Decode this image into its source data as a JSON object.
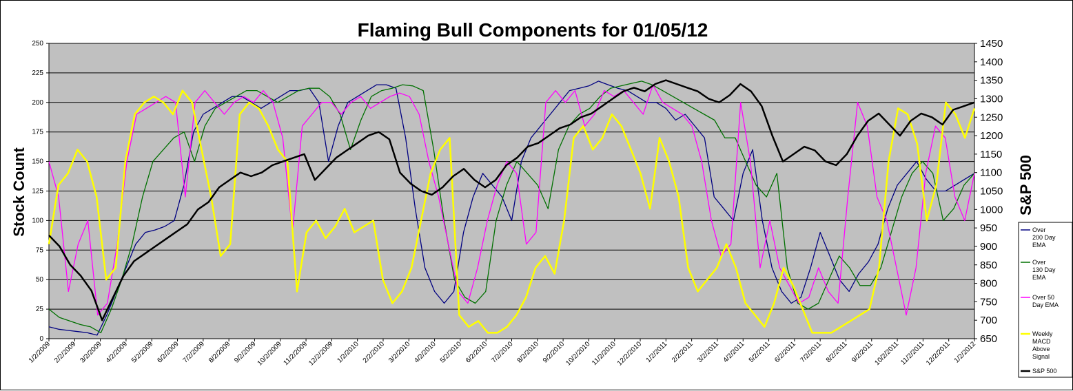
{
  "chart_data": {
    "type": "line",
    "title": "Flaming Bull Components for 01/05/12",
    "ylabel": "Stock Count",
    "y2label": "S&P 500",
    "ylim": [
      0,
      250
    ],
    "y2lim": [
      650,
      1450
    ],
    "yticks": [
      "0",
      "25",
      "50",
      "75",
      "100",
      "125",
      "150",
      "175",
      "200",
      "225",
      "250"
    ],
    "y2ticks": [
      "650",
      "700",
      "750",
      "800",
      "850",
      "900",
      "950",
      "1000",
      "1050",
      "1100",
      "1150",
      "1200",
      "1250",
      "1300",
      "1350",
      "1400",
      "1450"
    ],
    "xticks": [
      "1/2/2009",
      "2/2/2009",
      "3/2/2009",
      "4/2/2009",
      "5/2/2009",
      "6/2/2009",
      "7/2/2009",
      "8/2/2009",
      "9/2/2009",
      "10/2/2009",
      "11/2/2009",
      "12/2/2009",
      "1/2/2010",
      "2/2/2010",
      "3/2/2010",
      "4/2/2010",
      "5/2/2010",
      "6/2/2010",
      "7/2/2010",
      "8/2/2010",
      "9/2/2010",
      "10/2/2010",
      "11/2/2010",
      "12/2/2010",
      "1/2/2011",
      "2/2/2011",
      "3/2/2011",
      "4/2/2011",
      "5/2/2011",
      "6/2/2011",
      "7/2/2011",
      "8/2/2011",
      "9/2/2011",
      "10/2/2011",
      "11/2/2011",
      "12/2/2011",
      "1/2/2012"
    ],
    "grid": true,
    "background": "#C0C0C0",
    "legend_position": "right-bottom",
    "series": [
      {
        "name": "Over 200 Day EMA",
        "color": "#000080",
        "axis": "left",
        "values": [
          10,
          8,
          7,
          6,
          5,
          3,
          20,
          40,
          60,
          80,
          90,
          92,
          95,
          100,
          130,
          175,
          190,
          195,
          200,
          205,
          205,
          200,
          195,
          200,
          205,
          210,
          210,
          212,
          200,
          150,
          180,
          200,
          205,
          210,
          215,
          215,
          212,
          170,
          110,
          60,
          40,
          30,
          40,
          90,
          120,
          140,
          130,
          120,
          100,
          150,
          170,
          180,
          190,
          200,
          210,
          212,
          214,
          218,
          215,
          212,
          210,
          205,
          200,
          200,
          195,
          185,
          190,
          180,
          170,
          120,
          110,
          100,
          140,
          160,
          100,
          60,
          40,
          30,
          35,
          60,
          90,
          70,
          50,
          40,
          55,
          65,
          80,
          110,
          130,
          140,
          150,
          135,
          125,
          125,
          130,
          135,
          140
        ]
      },
      {
        "name": "Over 130 Day EMA",
        "color": "#007000",
        "axis": "left",
        "values": [
          25,
          18,
          15,
          12,
          10,
          5,
          25,
          50,
          80,
          120,
          150,
          160,
          170,
          175,
          150,
          180,
          195,
          200,
          205,
          210,
          210,
          205,
          200,
          205,
          210,
          212,
          212,
          205,
          190,
          160,
          185,
          205,
          210,
          212,
          215,
          214,
          210,
          160,
          100,
          50,
          35,
          30,
          40,
          100,
          130,
          150,
          140,
          130,
          110,
          160,
          180,
          190,
          195,
          205,
          212,
          214,
          216,
          218,
          215,
          210,
          205,
          200,
          195,
          190,
          185,
          170,
          170,
          150,
          130,
          120,
          140,
          60,
          30,
          25,
          30,
          50,
          70,
          60,
          45,
          45,
          60,
          90,
          120,
          140,
          150,
          140,
          100,
          110,
          130,
          140
        ]
      },
      {
        "name": "Over 50 Day EMA",
        "color": "#FF00FF",
        "axis": "left",
        "values": [
          150,
          120,
          40,
          80,
          100,
          20,
          30,
          80,
          150,
          190,
          195,
          200,
          205,
          200,
          120,
          200,
          210,
          200,
          190,
          200,
          205,
          200,
          210,
          200,
          170,
          90,
          180,
          190,
          200,
          200,
          190,
          200,
          205,
          195,
          200,
          205,
          208,
          205,
          190,
          150,
          120,
          80,
          40,
          30,
          60,
          100,
          130,
          150,
          140,
          80,
          90,
          200,
          210,
          200,
          210,
          180,
          190,
          210,
          205,
          210,
          200,
          190,
          215,
          200,
          195,
          190,
          180,
          150,
          100,
          70,
          80,
          200,
          150,
          60,
          100,
          60,
          45,
          30,
          35,
          60,
          40,
          30,
          120,
          200,
          180,
          120,
          100,
          60,
          20,
          60,
          140,
          180,
          170,
          120,
          100,
          140
        ]
      },
      {
        "name": "Weekly MACD Above Signal",
        "color": "#FFFF00",
        "axis": "left",
        "values": [
          80,
          130,
          140,
          160,
          150,
          120,
          50,
          60,
          150,
          190,
          200,
          205,
          200,
          190,
          210,
          200,
          160,
          120,
          70,
          80,
          190,
          200,
          195,
          180,
          160,
          150,
          40,
          90,
          100,
          85,
          95,
          110,
          90,
          95,
          100,
          50,
          30,
          40,
          60,
          100,
          140,
          160,
          170,
          20,
          10,
          15,
          5,
          5,
          10,
          20,
          35,
          60,
          70,
          55,
          100,
          170,
          180,
          160,
          170,
          190,
          180,
          160,
          140,
          110,
          170,
          150,
          120,
          60,
          40,
          50,
          60,
          80,
          60,
          30,
          20,
          10,
          30,
          60,
          45,
          25,
          5,
          5,
          5,
          10,
          15,
          20,
          25,
          60,
          150,
          195,
          190,
          165,
          100,
          130,
          200,
          190,
          170,
          195
        ]
      },
      {
        "name": "S&P 500",
        "color": "#000000",
        "axis": "right",
        "values": [
          930,
          900,
          850,
          820,
          780,
          700,
          760,
          820,
          860,
          880,
          900,
          920,
          940,
          960,
          1000,
          1020,
          1060,
          1080,
          1100,
          1090,
          1100,
          1120,
          1130,
          1140,
          1150,
          1080,
          1110,
          1140,
          1160,
          1180,
          1200,
          1210,
          1190,
          1100,
          1070,
          1050,
          1040,
          1060,
          1090,
          1110,
          1080,
          1060,
          1080,
          1120,
          1140,
          1170,
          1180,
          1200,
          1220,
          1230,
          1250,
          1260,
          1280,
          1300,
          1320,
          1330,
          1320,
          1340,
          1350,
          1340,
          1330,
          1320,
          1300,
          1290,
          1310,
          1340,
          1320,
          1280,
          1200,
          1130,
          1150,
          1170,
          1160,
          1130,
          1120,
          1150,
          1200,
          1240,
          1260,
          1230,
          1200,
          1240,
          1260,
          1250,
          1230,
          1270,
          1280,
          1290
        ]
      }
    ]
  }
}
